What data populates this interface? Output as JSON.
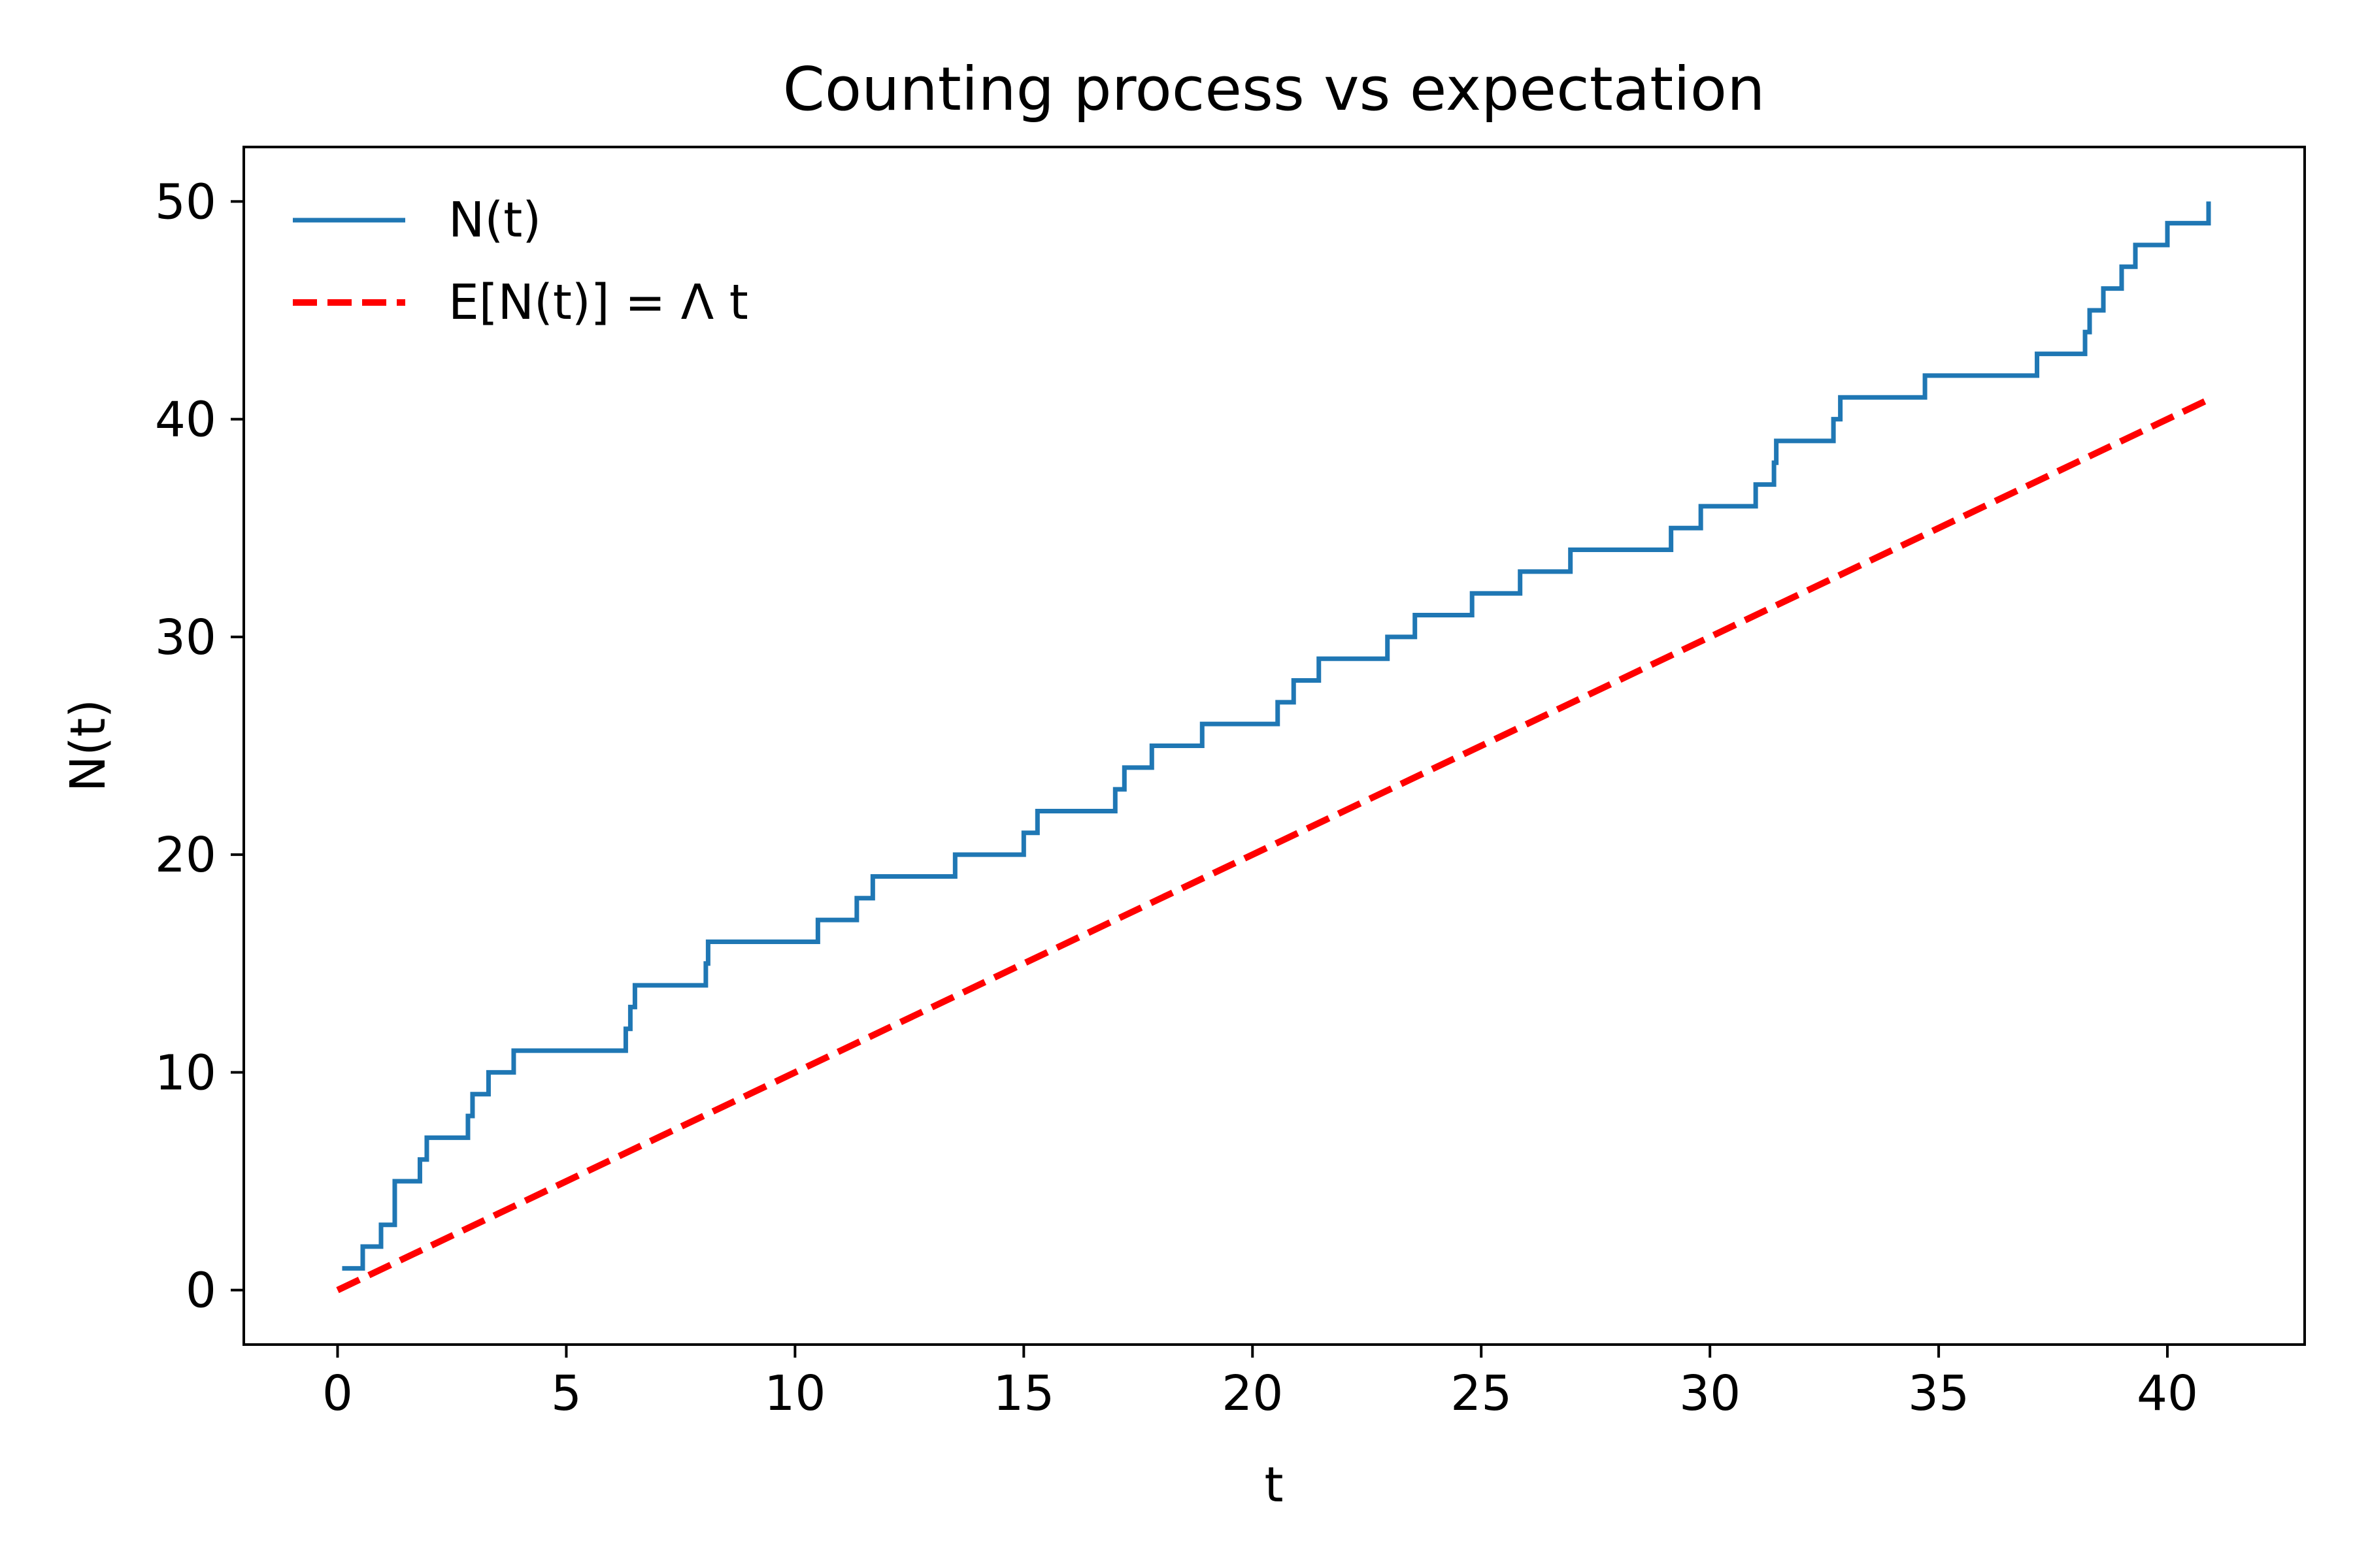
{
  "chart_data": {
    "type": "line",
    "title": "Counting process vs expectation",
    "xlabel": "t",
    "ylabel": "N(t)",
    "xlim": [
      -2.05,
      43.0
    ],
    "ylim": [
      -2.5,
      52.5
    ],
    "xticks": [
      0,
      5,
      10,
      15,
      20,
      25,
      30,
      35,
      40
    ],
    "yticks": [
      0,
      10,
      20,
      30,
      40,
      50
    ],
    "grid": false,
    "legend": "upper left",
    "series": [
      {
        "name": "N(t)",
        "style": "step",
        "color": "#1f77b4",
        "x": [
          0.1,
          0.55,
          0.95,
          1.25,
          1.8,
          1.95,
          2.85,
          2.95,
          3.3,
          3.85,
          6.3,
          6.4,
          6.5,
          8.05,
          8.1,
          10.5,
          11.35,
          11.7,
          13.5,
          15.0,
          15.3,
          17.0,
          17.2,
          17.8,
          18.9,
          20.55,
          20.9,
          21.45,
          22.95,
          23.55,
          24.8,
          25.85,
          26.95,
          29.15,
          29.8,
          31.0,
          31.4,
          31.45,
          32.7,
          32.85,
          34.7,
          37.15,
          38.2,
          38.3,
          38.6,
          39.0,
          39.3,
          39.35,
          40.0,
          40.9
        ],
        "values": [
          1,
          2,
          3,
          5,
          6,
          7,
          8,
          9,
          10,
          11,
          12,
          13,
          14,
          15,
          16,
          17,
          18,
          19,
          20,
          21,
          22,
          23,
          24,
          25,
          26,
          27,
          28,
          29,
          30,
          31,
          32,
          33,
          34,
          35,
          36,
          37,
          38,
          39,
          40,
          41,
          42,
          43,
          44,
          45,
          46,
          47,
          48,
          48,
          49,
          50
        ]
      },
      {
        "name": "E[N(t)] = Λ t",
        "style": "dashed",
        "color": "#ff0000",
        "x": [
          0,
          40.9
        ],
        "values": [
          0,
          40.9
        ]
      }
    ]
  }
}
